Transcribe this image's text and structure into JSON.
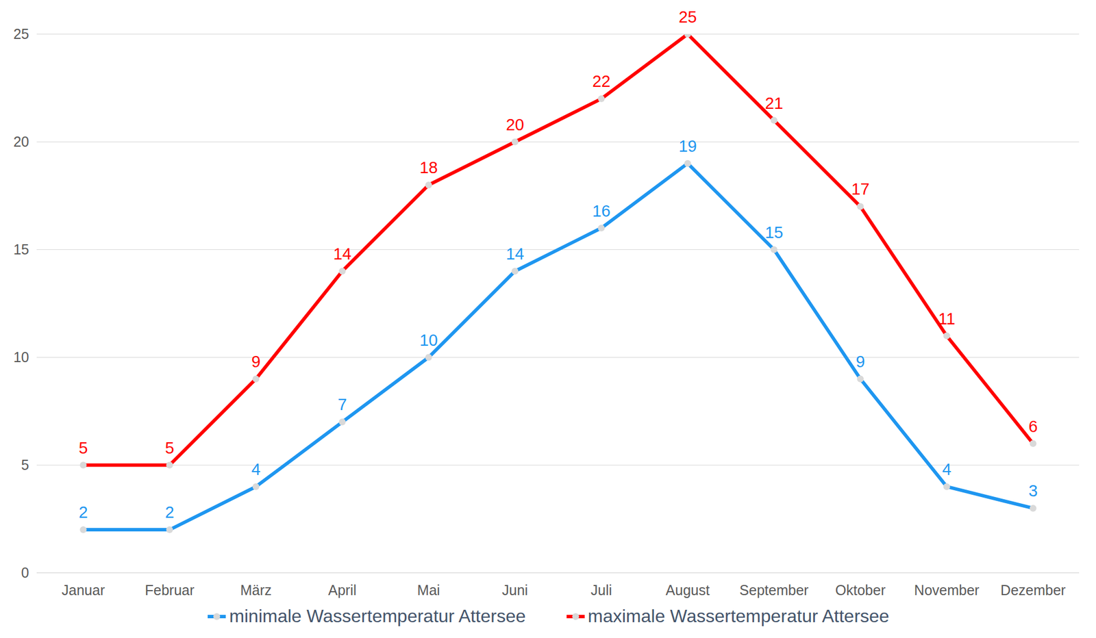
{
  "chart_data": {
    "type": "line",
    "categories": [
      "Januar",
      "Februar",
      "März",
      "April",
      "Mai",
      "Juni",
      "Juli",
      "August",
      "September",
      "Oktober",
      "November",
      "Dezember"
    ],
    "series": [
      {
        "name": "minimale Wassertemperatur Attersee",
        "color": "#1e96f0",
        "marker": "circle",
        "values": [
          2,
          2,
          4,
          7,
          10,
          14,
          16,
          19,
          15,
          9,
          4,
          3
        ]
      },
      {
        "name": "maximale Wassertemperatur Attersee",
        "color": "#ff0000",
        "marker": "circle",
        "values": [
          5,
          5,
          9,
          14,
          18,
          20,
          22,
          25,
          21,
          17,
          11,
          6
        ]
      }
    ],
    "ylim": [
      0,
      25
    ],
    "yticks": [
      0,
      5,
      10,
      15,
      20,
      25
    ],
    "grid": true,
    "data_labels": true,
    "legend": "bottom"
  }
}
